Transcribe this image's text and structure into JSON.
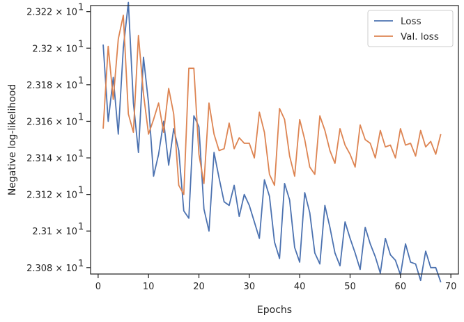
{
  "chart_data": {
    "type": "line",
    "xlabel": "Epochs",
    "ylabel": "Negative log-likelihood",
    "xlim": [
      -1.5,
      71.5
    ],
    "ylim": [
      23.0765,
      23.2233
    ],
    "xticks": [
      0,
      10,
      20,
      30,
      40,
      50,
      60,
      70
    ],
    "yticks": [
      {
        "value": 23.08,
        "mantissa": "2.308"
      },
      {
        "value": 23.1,
        "mantissa": "2.31"
      },
      {
        "value": 23.12,
        "mantissa": "2.312"
      },
      {
        "value": 23.14,
        "mantissa": "2.314"
      },
      {
        "value": 23.16,
        "mantissa": "2.316"
      },
      {
        "value": 23.18,
        "mantissa": "2.318"
      },
      {
        "value": 23.2,
        "mantissa": "2.32"
      },
      {
        "value": 23.22,
        "mantissa": "2.322"
      }
    ],
    "ytick_suffix": "× 10",
    "ytick_exponent": "1",
    "grid": false,
    "legend_position": "top-right",
    "series": [
      {
        "name": "Loss",
        "color": "#4c72b0",
        "x": [
          1,
          2,
          3,
          4,
          5,
          6,
          7,
          8,
          9,
          10,
          11,
          12,
          13,
          14,
          15,
          16,
          17,
          18,
          19,
          20,
          21,
          22,
          23,
          24,
          25,
          26,
          27,
          28,
          29,
          30,
          31,
          32,
          33,
          34,
          35,
          36,
          37,
          38,
          39,
          40,
          41,
          42,
          43,
          44,
          45,
          46,
          47,
          48,
          49,
          50,
          51,
          52,
          53,
          54,
          55,
          56,
          57,
          58,
          59,
          60,
          61,
          62,
          63,
          64,
          65,
          66,
          67,
          68
        ],
        "values": [
          23.202,
          23.16,
          23.184,
          23.153,
          23.2,
          23.225,
          23.17,
          23.143,
          23.195,
          23.17,
          23.13,
          23.142,
          23.16,
          23.136,
          23.156,
          23.144,
          23.111,
          23.107,
          23.163,
          23.157,
          23.112,
          23.1,
          23.143,
          23.129,
          23.116,
          23.114,
          23.125,
          23.108,
          23.12,
          23.114,
          23.105,
          23.096,
          23.128,
          23.119,
          23.094,
          23.085,
          23.126,
          23.117,
          23.091,
          23.083,
          23.121,
          23.11,
          23.088,
          23.082,
          23.114,
          23.102,
          23.088,
          23.081,
          23.105,
          23.096,
          23.088,
          23.079,
          23.102,
          23.093,
          23.086,
          23.077,
          23.096,
          23.087,
          23.084,
          23.076,
          23.093,
          23.083,
          23.082,
          23.073,
          23.089,
          23.08,
          23.08,
          23.072
        ]
      },
      {
        "name": "Val. loss",
        "color": "#dd8452",
        "x": [
          1,
          2,
          3,
          4,
          5,
          6,
          7,
          8,
          9,
          10,
          11,
          12,
          13,
          14,
          15,
          16,
          17,
          18,
          19,
          20,
          21,
          22,
          23,
          24,
          25,
          26,
          27,
          28,
          29,
          30,
          31,
          32,
          33,
          34,
          35,
          36,
          37,
          38,
          39,
          40,
          41,
          42,
          43,
          44,
          45,
          46,
          47,
          48,
          49,
          50,
          51,
          52,
          53,
          54,
          55,
          56,
          57,
          58,
          59,
          60,
          61,
          62,
          63,
          64,
          65,
          66,
          67,
          68
        ],
        "values": [
          23.156,
          23.201,
          23.172,
          23.205,
          23.218,
          23.164,
          23.154,
          23.207,
          23.175,
          23.153,
          23.161,
          23.17,
          23.154,
          23.178,
          23.164,
          23.125,
          23.12,
          23.189,
          23.189,
          23.142,
          23.126,
          23.17,
          23.153,
          23.144,
          23.145,
          23.159,
          23.145,
          23.151,
          23.148,
          23.148,
          23.14,
          23.165,
          23.154,
          23.131,
          23.125,
          23.167,
          23.161,
          23.141,
          23.13,
          23.161,
          23.15,
          23.135,
          23.131,
          23.163,
          23.155,
          23.144,
          23.137,
          23.156,
          23.147,
          23.142,
          23.135,
          23.158,
          23.15,
          23.148,
          23.14,
          23.155,
          23.146,
          23.147,
          23.14,
          23.156,
          23.147,
          23.148,
          23.141,
          23.155,
          23.146,
          23.149,
          23.142,
          23.153
        ]
      }
    ]
  }
}
